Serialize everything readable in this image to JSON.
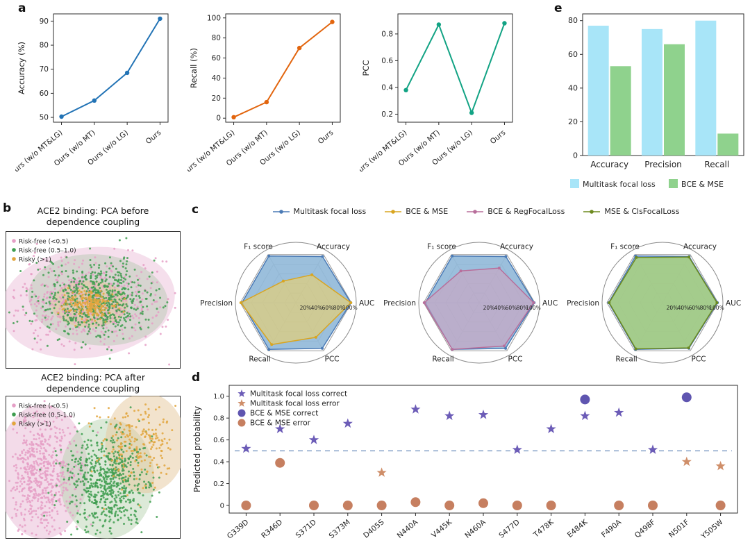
{
  "panel_labels": {
    "a": "a",
    "b": "b",
    "c": "c",
    "d": "d",
    "e": "e"
  },
  "radar_legend": [
    {
      "label": "Multitask focal loss",
      "color": "#4a7ab5"
    },
    {
      "label": "BCE & MSE",
      "color": "#d9a520"
    },
    {
      "label": "BCE & RegFocalLoss",
      "color": "#b86e9b"
    },
    {
      "label": "MSE & ClsFocalLoss",
      "color": "#6d8a1f"
    }
  ],
  "chart_data": [
    {
      "id": "a-accuracy",
      "type": "line",
      "title": "",
      "ylabel": "Accuracy (%)",
      "categories": [
        "Ours (w/o MT&LG)",
        "Ours (w/o MT)",
        "Ours (w/o LG)",
        "Ours"
      ],
      "values": [
        50.3,
        57,
        68.5,
        91
      ],
      "yticks": [
        50,
        60,
        70,
        80,
        90
      ],
      "ytick_labels": [
        "50",
        "60",
        "70",
        "80",
        "90"
      ],
      "ylim": [
        48,
        93
      ],
      "color": "#2273b5"
    },
    {
      "id": "a-recall",
      "type": "line",
      "title": "",
      "ylabel": "Recall (%)",
      "categories": [
        "Ours (w/o MT&LG)",
        "Ours (w/o MT)",
        "Ours (w/o LG)",
        "Ours"
      ],
      "values": [
        1,
        16,
        70,
        96
      ],
      "yticks": [
        0,
        20,
        40,
        60,
        80,
        100
      ],
      "ytick_labels": [
        "0",
        "20",
        "40",
        "60",
        "80",
        "100"
      ],
      "ylim": [
        -4,
        104
      ],
      "color": "#e2650e"
    },
    {
      "id": "a-pcc",
      "type": "line",
      "title": "",
      "ylabel": "PCC",
      "categories": [
        "Ours (w/o MT&LG)",
        "Ours (w/o MT)",
        "Ours (w/o LG)",
        "Ours"
      ],
      "values": [
        0.38,
        0.87,
        0.21,
        0.88
      ],
      "yticks": [
        0.2,
        0.4,
        0.6,
        0.8
      ],
      "ytick_labels": [
        "0.2",
        "0.4",
        "0.6",
        "0.8"
      ],
      "ylim": [
        0.14,
        0.95
      ],
      "color": "#12a384"
    },
    {
      "id": "e-bars",
      "type": "bar",
      "categories": [
        "Accuracy",
        "Precision",
        "Recall"
      ],
      "series": [
        {
          "name": "Multitask focal loss",
          "color": "#a8e5f8",
          "values": [
            77,
            75,
            80
          ]
        },
        {
          "name": "BCE & MSE",
          "color": "#8fd28d",
          "values": [
            53,
            66,
            13
          ]
        }
      ],
      "yticks": [
        0,
        20,
        40,
        60,
        80
      ],
      "ytick_labels": [
        "0",
        "20",
        "40",
        "60",
        "80"
      ],
      "ylim": [
        0,
        84
      ]
    },
    {
      "id": "b-before",
      "type": "scatter",
      "title": "ACE2 binding: PCA before\ndependence coupling",
      "legend": [
        {
          "label": "Risk-free (<0.5)",
          "color": "#e59fc6"
        },
        {
          "label": "Risk-free (0.5–1.0)",
          "color": "#3f9d50"
        },
        {
          "label": "Risky (>1)",
          "color": "#e2a63d"
        }
      ],
      "ellipses": [
        {
          "color": "#e8b7d4",
          "opacity": 0.45,
          "cx": 0.47,
          "cy": 0.52,
          "rx": 0.5,
          "ry": 0.4,
          "rot": -8
        },
        {
          "color": "#b9c9b4",
          "opacity": 0.5,
          "cx": 0.53,
          "cy": 0.5,
          "rx": 0.4,
          "ry": 0.33,
          "rot": 6
        },
        {
          "color": "#e6c79b",
          "opacity": 0.55,
          "cx": 0.48,
          "cy": 0.53,
          "rx": 0.22,
          "ry": 0.17,
          "rot": 0
        }
      ],
      "clusters": [
        {
          "name": "Risk-free (<0.5)",
          "color": "#e59fc6",
          "n": 550,
          "cx": 0.46,
          "cy": 0.52,
          "sx": 0.2,
          "sy": 0.15,
          "seed": 11
        },
        {
          "name": "Risk-free (0.5-1.0)",
          "color": "#3f9d50",
          "n": 650,
          "cx": 0.52,
          "cy": 0.5,
          "sx": 0.16,
          "sy": 0.13,
          "seed": 22
        },
        {
          "name": "Risky (>1)",
          "color": "#e2a63d",
          "n": 220,
          "cx": 0.48,
          "cy": 0.53,
          "sx": 0.07,
          "sy": 0.05,
          "seed": 33
        }
      ]
    },
    {
      "id": "b-after",
      "type": "scatter",
      "title": "ACE2 binding: PCA after\ndependence coupling",
      "legend": [
        {
          "label": "Risk-free (<0.5)",
          "color": "#e59fc6"
        },
        {
          "label": "Risk-free (0.5-1.0)",
          "color": "#3f9d50"
        },
        {
          "label": "Risky (>1)",
          "color": "#e2a63d"
        }
      ],
      "ellipses": [
        {
          "color": "#e8b7d4",
          "opacity": 0.5,
          "cx": 0.21,
          "cy": 0.53,
          "rx": 0.26,
          "ry": 0.47,
          "rot": 0
        },
        {
          "color": "#b9d4b2",
          "opacity": 0.5,
          "cx": 0.58,
          "cy": 0.58,
          "rx": 0.27,
          "ry": 0.42,
          "rot": 0
        },
        {
          "color": "#e6c79b",
          "opacity": 0.5,
          "cx": 0.8,
          "cy": 0.33,
          "rx": 0.23,
          "ry": 0.35,
          "rot": 0
        }
      ],
      "clusters": [
        {
          "name": "Risk-free (<0.5)",
          "color": "#e59fc6",
          "n": 600,
          "cx": 0.2,
          "cy": 0.54,
          "sx": 0.1,
          "sy": 0.2,
          "seed": 44
        },
        {
          "name": "Risk-free (0.5-1.0)",
          "color": "#3f9d50",
          "n": 650,
          "cx": 0.58,
          "cy": 0.6,
          "sx": 0.12,
          "sy": 0.17,
          "seed": 55
        },
        {
          "name": "Risky (>1)",
          "color": "#e2a63d",
          "n": 200,
          "cx": 0.78,
          "cy": 0.32,
          "sx": 0.11,
          "sy": 0.13,
          "seed": 66
        }
      ]
    },
    {
      "id": "c-radar-1",
      "type": "radar",
      "axes": [
        "F₁ score",
        "Accuracy",
        "AUC",
        "PCC",
        "Recall",
        "Precision"
      ],
      "rings": [
        "20%",
        "40%",
        "60%",
        "80%",
        "100%"
      ],
      "series": [
        {
          "name": "Multitask focal loss",
          "stroke": "#4a7ab5",
          "fill": "#8ab4d6",
          "fill_opacity": 0.85,
          "values": [
            97,
            96,
            99,
            95,
            97,
            97
          ]
        },
        {
          "name": "BCE & MSE",
          "stroke": "#d9a520",
          "fill": "#ead06e",
          "fill_opacity": 0.65,
          "values": [
            45,
            58,
            99,
            72,
            87,
            99
          ]
        }
      ]
    },
    {
      "id": "c-radar-2",
      "type": "radar",
      "axes": [
        "F₁ score",
        "Accuracy",
        "AUC",
        "PCC",
        "Recall",
        "Precision"
      ],
      "rings": [
        "20%",
        "40%",
        "60%",
        "80%",
        "100%"
      ],
      "series": [
        {
          "name": "Multitask focal loss",
          "stroke": "#4a7ab5",
          "fill": "#8ab4d6",
          "fill_opacity": 0.85,
          "values": [
            97,
            96,
            99,
            95,
            97,
            97
          ]
        },
        {
          "name": "BCE & RegFocalLoss",
          "stroke": "#b86e9b",
          "fill": "#cfa3bf",
          "fill_opacity": 0.6,
          "values": [
            66,
            72,
            98,
            90,
            97,
            99
          ]
        }
      ]
    },
    {
      "id": "c-radar-3",
      "type": "radar",
      "axes": [
        "F₁ score",
        "Accuracy",
        "AUC",
        "PCC",
        "Recall",
        "Precision"
      ],
      "rings": [
        "20%",
        "40%",
        "60%",
        "80%",
        "100%"
      ],
      "series": [
        {
          "name": "Multitask focal loss",
          "stroke": "#4a7ab5",
          "fill": "#8ab4d6",
          "fill_opacity": 0.85,
          "values": [
            97,
            96,
            99,
            95,
            97,
            97
          ]
        },
        {
          "name": "MSE & ClsFocalLoss",
          "stroke": "#6d8a1f",
          "fill": "#a6ce7e",
          "fill_opacity": 0.85,
          "values": [
            94,
            95,
            98,
            94,
            96,
            96
          ]
        }
      ]
    },
    {
      "id": "d-dot",
      "type": "scatter-categorical",
      "ylabel": "Predicted probability",
      "categories": [
        "G339D",
        "R346D",
        "S371D",
        "S373M",
        "D405S",
        "N440A",
        "V445K",
        "N460A",
        "S477D",
        "T478K",
        "E484K",
        "F490A",
        "Q498F",
        "N501F",
        "Y505W"
      ],
      "yticks": [
        0,
        0.2,
        0.4,
        0.6,
        0.8,
        1.0
      ],
      "ytick_labels": [
        "0",
        "0.2",
        "0.4",
        "0.6",
        "0.8",
        "1.0"
      ],
      "ylim": [
        -0.07,
        1.1
      ],
      "threshold": 0.5,
      "threshold_color": "#8fa8cc",
      "series": [
        {
          "name": "Multitask focal loss correct",
          "marker": "star",
          "color": "#6c5cb7",
          "values": [
            0.52,
            0.7,
            0.6,
            0.75,
            null,
            0.88,
            0.82,
            0.83,
            0.51,
            0.7,
            0.82,
            0.85,
            0.51,
            null,
            null
          ]
        },
        {
          "name": "Multitask focal loss error",
          "marker": "star",
          "color": "#cf8e69",
          "values": [
            null,
            null,
            null,
            null,
            0.3,
            null,
            null,
            null,
            null,
            null,
            null,
            null,
            null,
            0.4,
            0.36
          ]
        },
        {
          "name": "BCE & MSE correct",
          "marker": "circle",
          "color": "#5f55b0",
          "values": [
            null,
            null,
            null,
            null,
            null,
            null,
            null,
            null,
            null,
            null,
            0.97,
            null,
            null,
            0.99,
            null
          ]
        },
        {
          "name": "BCE & MSE error",
          "marker": "circle",
          "color": "#c67f60",
          "values": [
            0.0,
            0.39,
            0.0,
            0.0,
            0.0,
            0.03,
            0.0,
            0.02,
            0.0,
            0.0,
            null,
            0.0,
            0.0,
            null,
            0.0
          ]
        }
      ]
    }
  ]
}
